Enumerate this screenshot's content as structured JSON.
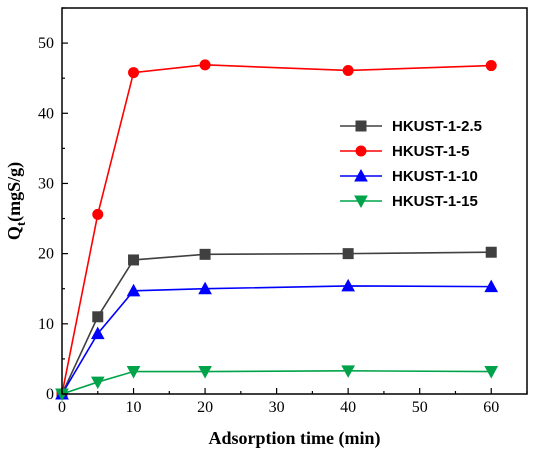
{
  "chart_data": {
    "type": "line",
    "title": "",
    "xlabel": "Adsorption time (min)",
    "ylabel_main": "Q",
    "ylabel_sub": "t",
    "ylabel_unit": "(mgS/g)",
    "xlim": [
      0,
      65
    ],
    "ylim": [
      0,
      55
    ],
    "xticks": [
      0,
      10,
      20,
      30,
      40,
      50,
      60
    ],
    "yticks": [
      0,
      10,
      20,
      30,
      40,
      50
    ],
    "grid": false,
    "legend_position": "right",
    "x": [
      0,
      5,
      10,
      20,
      40,
      60
    ],
    "series": [
      {
        "name": "HKUST-1-2.5",
        "color": "#404040",
        "marker": "square",
        "values": [
          0,
          11.0,
          19.1,
          19.9,
          20.0,
          20.2
        ]
      },
      {
        "name": "HKUST-1-5",
        "color": "#ff0000",
        "marker": "circle",
        "values": [
          0,
          25.6,
          45.8,
          46.9,
          46.1,
          46.8
        ]
      },
      {
        "name": "HKUST-1-10",
        "color": "#0000ff",
        "marker": "triangle-up",
        "values": [
          0,
          8.6,
          14.7,
          15.0,
          15.4,
          15.3
        ]
      },
      {
        "name": "HKUST-1-15",
        "color": "#00a34a",
        "marker": "triangle-down",
        "values": [
          0,
          1.7,
          3.2,
          3.2,
          3.3,
          3.2
        ]
      }
    ]
  }
}
